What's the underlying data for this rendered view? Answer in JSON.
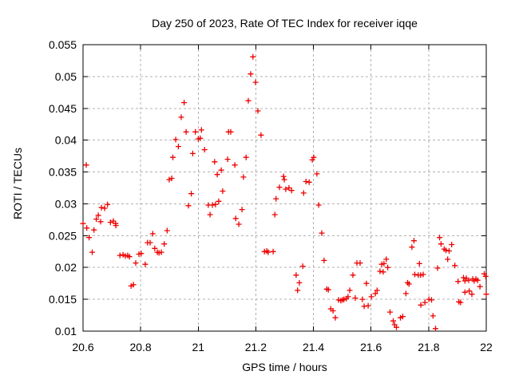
{
  "chart_data": {
    "type": "scatter",
    "title": "Day 250 of 2023, Rate Of TEC Index for receiver iqqe",
    "xlabel": "GPS time / hours",
    "ylabel": "ROTI / TECUs",
    "xlim": [
      20.6,
      22.0
    ],
    "ylim": [
      0.01,
      0.055
    ],
    "xticks": [
      {
        "v": 20.6,
        "label": "20.6"
      },
      {
        "v": 20.8,
        "label": "20.8"
      },
      {
        "v": 21.0,
        "label": "21"
      },
      {
        "v": 21.2,
        "label": "21.2"
      },
      {
        "v": 21.4,
        "label": "21.4"
      },
      {
        "v": 21.6,
        "label": "21.6"
      },
      {
        "v": 21.8,
        "label": "21.8"
      },
      {
        "v": 22.0,
        "label": "22"
      }
    ],
    "yticks": [
      {
        "v": 0.01,
        "label": "0.01"
      },
      {
        "v": 0.015,
        "label": "0.015"
      },
      {
        "v": 0.02,
        "label": "0.02"
      },
      {
        "v": 0.025,
        "label": "0.025"
      },
      {
        "v": 0.03,
        "label": "0.03"
      },
      {
        "v": 0.035,
        "label": "0.035"
      },
      {
        "v": 0.04,
        "label": "0.04"
      },
      {
        "v": 0.045,
        "label": "0.045"
      },
      {
        "v": 0.05,
        "label": "0.05"
      },
      {
        "v": 0.055,
        "label": "0.055"
      }
    ],
    "grid": true,
    "grid_style": "dashed",
    "legend": false,
    "marker": "plus",
    "marker_color": "#ee0000",
    "grid_color": "#b0b0b0",
    "axis_color": "#000000",
    "background": "#ffffff",
    "points": [
      [
        20.6,
        0.0269
      ],
      [
        20.611,
        0.0361
      ],
      [
        20.613,
        0.0262
      ],
      [
        20.621,
        0.0247
      ],
      [
        20.632,
        0.0224
      ],
      [
        20.638,
        0.0259
      ],
      [
        20.646,
        0.0276
      ],
      [
        20.653,
        0.0282
      ],
      [
        20.661,
        0.0272
      ],
      [
        20.664,
        0.0294
      ],
      [
        20.675,
        0.0293
      ],
      [
        20.685,
        0.0299
      ],
      [
        20.695,
        0.0271
      ],
      [
        20.705,
        0.0273
      ],
      [
        20.713,
        0.0269
      ],
      [
        20.714,
        0.0266
      ],
      [
        20.728,
        0.0219
      ],
      [
        20.739,
        0.022
      ],
      [
        20.747,
        0.0218
      ],
      [
        20.755,
        0.0219
      ],
      [
        20.761,
        0.0217
      ],
      [
        20.767,
        0.0171
      ],
      [
        20.775,
        0.0173
      ],
      [
        20.783,
        0.0207
      ],
      [
        20.794,
        0.0221
      ],
      [
        20.802,
        0.0222
      ],
      [
        20.816,
        0.0205
      ],
      [
        20.824,
        0.0239
      ],
      [
        20.833,
        0.0239
      ],
      [
        20.842,
        0.0253
      ],
      [
        20.849,
        0.023
      ],
      [
        20.858,
        0.0224
      ],
      [
        20.864,
        0.0223
      ],
      [
        20.872,
        0.0224
      ],
      [
        20.882,
        0.0237
      ],
      [
        20.892,
        0.0258
      ],
      [
        20.899,
        0.0338
      ],
      [
        20.908,
        0.034
      ],
      [
        20.912,
        0.0373
      ],
      [
        20.922,
        0.0401
      ],
      [
        20.931,
        0.039
      ],
      [
        20.941,
        0.0436
      ],
      [
        20.951,
        0.0459
      ],
      [
        20.958,
        0.0413
      ],
      [
        20.966,
        0.0297
      ],
      [
        20.976,
        0.0316
      ],
      [
        20.981,
        0.0379
      ],
      [
        20.99,
        0.0413
      ],
      [
        21.0,
        0.0402
      ],
      [
        21.007,
        0.0403
      ],
      [
        21.011,
        0.0416
      ],
      [
        21.022,
        0.0385
      ],
      [
        21.035,
        0.0298
      ],
      [
        21.041,
        0.0283
      ],
      [
        21.049,
        0.0298
      ],
      [
        21.057,
        0.0366
      ],
      [
        21.06,
        0.0299
      ],
      [
        21.066,
        0.0346
      ],
      [
        21.071,
        0.0304
      ],
      [
        21.08,
        0.0353
      ],
      [
        21.085,
        0.032
      ],
      [
        21.102,
        0.037
      ],
      [
        21.105,
        0.0413
      ],
      [
        21.113,
        0.0413
      ],
      [
        21.127,
        0.0361
      ],
      [
        21.13,
        0.0277
      ],
      [
        21.141,
        0.0268
      ],
      [
        21.152,
        0.0291
      ],
      [
        21.157,
        0.0342
      ],
      [
        21.166,
        0.0373
      ],
      [
        21.174,
        0.0462
      ],
      [
        21.182,
        0.0504
      ],
      [
        21.19,
        0.0531
      ],
      [
        21.199,
        0.0491
      ],
      [
        21.207,
        0.0446
      ],
      [
        21.218,
        0.0408
      ],
      [
        21.23,
        0.0225
      ],
      [
        21.238,
        0.0226
      ],
      [
        21.243,
        0.0224
      ],
      [
        21.26,
        0.0225
      ],
      [
        21.266,
        0.0283
      ],
      [
        21.27,
        0.0308
      ],
      [
        21.282,
        0.0326
      ],
      [
        21.296,
        0.0343
      ],
      [
        21.299,
        0.0338
      ],
      [
        21.304,
        0.0323
      ],
      [
        21.315,
        0.0325
      ],
      [
        21.324,
        0.0321
      ],
      [
        21.34,
        0.0188
      ],
      [
        21.345,
        0.0164
      ],
      [
        21.351,
        0.0176
      ],
      [
        21.363,
        0.0202
      ],
      [
        21.366,
        0.0317
      ],
      [
        21.374,
        0.0335
      ],
      [
        21.385,
        0.0334
      ],
      [
        21.396,
        0.0369
      ],
      [
        21.401,
        0.0373
      ],
      [
        21.412,
        0.0347
      ],
      [
        21.418,
        0.0298
      ],
      [
        21.429,
        0.0254
      ],
      [
        21.437,
        0.0211
      ],
      [
        21.446,
        0.0166
      ],
      [
        21.452,
        0.0165
      ],
      [
        21.46,
        0.0135
      ],
      [
        21.468,
        0.0132
      ],
      [
        21.476,
        0.0121
      ],
      [
        21.487,
        0.0149
      ],
      [
        21.495,
        0.0148
      ],
      [
        21.501,
        0.0149
      ],
      [
        21.506,
        0.015
      ],
      [
        21.514,
        0.0151
      ],
      [
        21.52,
        0.0154
      ],
      [
        21.526,
        0.0164
      ],
      [
        21.537,
        0.0188
      ],
      [
        21.545,
        0.0152
      ],
      [
        21.551,
        0.0207
      ],
      [
        21.562,
        0.0207
      ],
      [
        21.57,
        0.015
      ],
      [
        21.576,
        0.0139
      ],
      [
        21.584,
        0.0175
      ],
      [
        21.59,
        0.014
      ],
      [
        21.601,
        0.0154
      ],
      [
        21.615,
        0.0159
      ],
      [
        21.621,
        0.0164
      ],
      [
        21.631,
        0.0194
      ],
      [
        21.637,
        0.0205
      ],
      [
        21.642,
        0.0193
      ],
      [
        21.645,
        0.0206
      ],
      [
        21.653,
        0.0213
      ],
      [
        21.658,
        0.02
      ],
      [
        21.666,
        0.013
      ],
      [
        21.677,
        0.0116
      ],
      [
        21.682,
        0.011
      ],
      [
        21.688,
        0.0106
      ],
      [
        21.702,
        0.0121
      ],
      [
        21.71,
        0.0123
      ],
      [
        21.721,
        0.0159
      ],
      [
        21.727,
        0.0176
      ],
      [
        21.732,
        0.0174
      ],
      [
        21.742,
        0.0232
      ],
      [
        21.749,
        0.0242
      ],
      [
        21.752,
        0.0189
      ],
      [
        21.764,
        0.0188
      ],
      [
        21.768,
        0.0206
      ],
      [
        21.772,
        0.0188
      ],
      [
        21.773,
        0.0141
      ],
      [
        21.781,
        0.0189
      ],
      [
        21.787,
        0.0145
      ],
      [
        21.801,
        0.015
      ],
      [
        21.81,
        0.0149
      ],
      [
        21.815,
        0.0124
      ],
      [
        21.824,
        0.0104
      ],
      [
        21.831,
        0.0199
      ],
      [
        21.838,
        0.0247
      ],
      [
        21.843,
        0.0237
      ],
      [
        21.854,
        0.0229
      ],
      [
        21.86,
        0.0227
      ],
      [
        21.866,
        0.0213
      ],
      [
        21.871,
        0.0226
      ],
      [
        21.88,
        0.0236
      ],
      [
        21.891,
        0.0203
      ],
      [
        21.902,
        0.0178
      ],
      [
        21.905,
        0.0146
      ],
      [
        21.911,
        0.0145
      ],
      [
        21.921,
        0.0184
      ],
      [
        21.926,
        0.0161
      ],
      [
        21.926,
        0.0179
      ],
      [
        21.931,
        0.0183
      ],
      [
        21.939,
        0.018
      ],
      [
        21.941,
        0.0163
      ],
      [
        21.95,
        0.0158
      ],
      [
        21.953,
        0.0182
      ],
      [
        21.958,
        0.0179
      ],
      [
        21.964,
        0.0182
      ],
      [
        21.97,
        0.018
      ],
      [
        21.978,
        0.017
      ],
      [
        21.993,
        0.019
      ],
      [
        21.998,
        0.0186
      ],
      [
        22.0,
        0.0158
      ]
    ]
  }
}
